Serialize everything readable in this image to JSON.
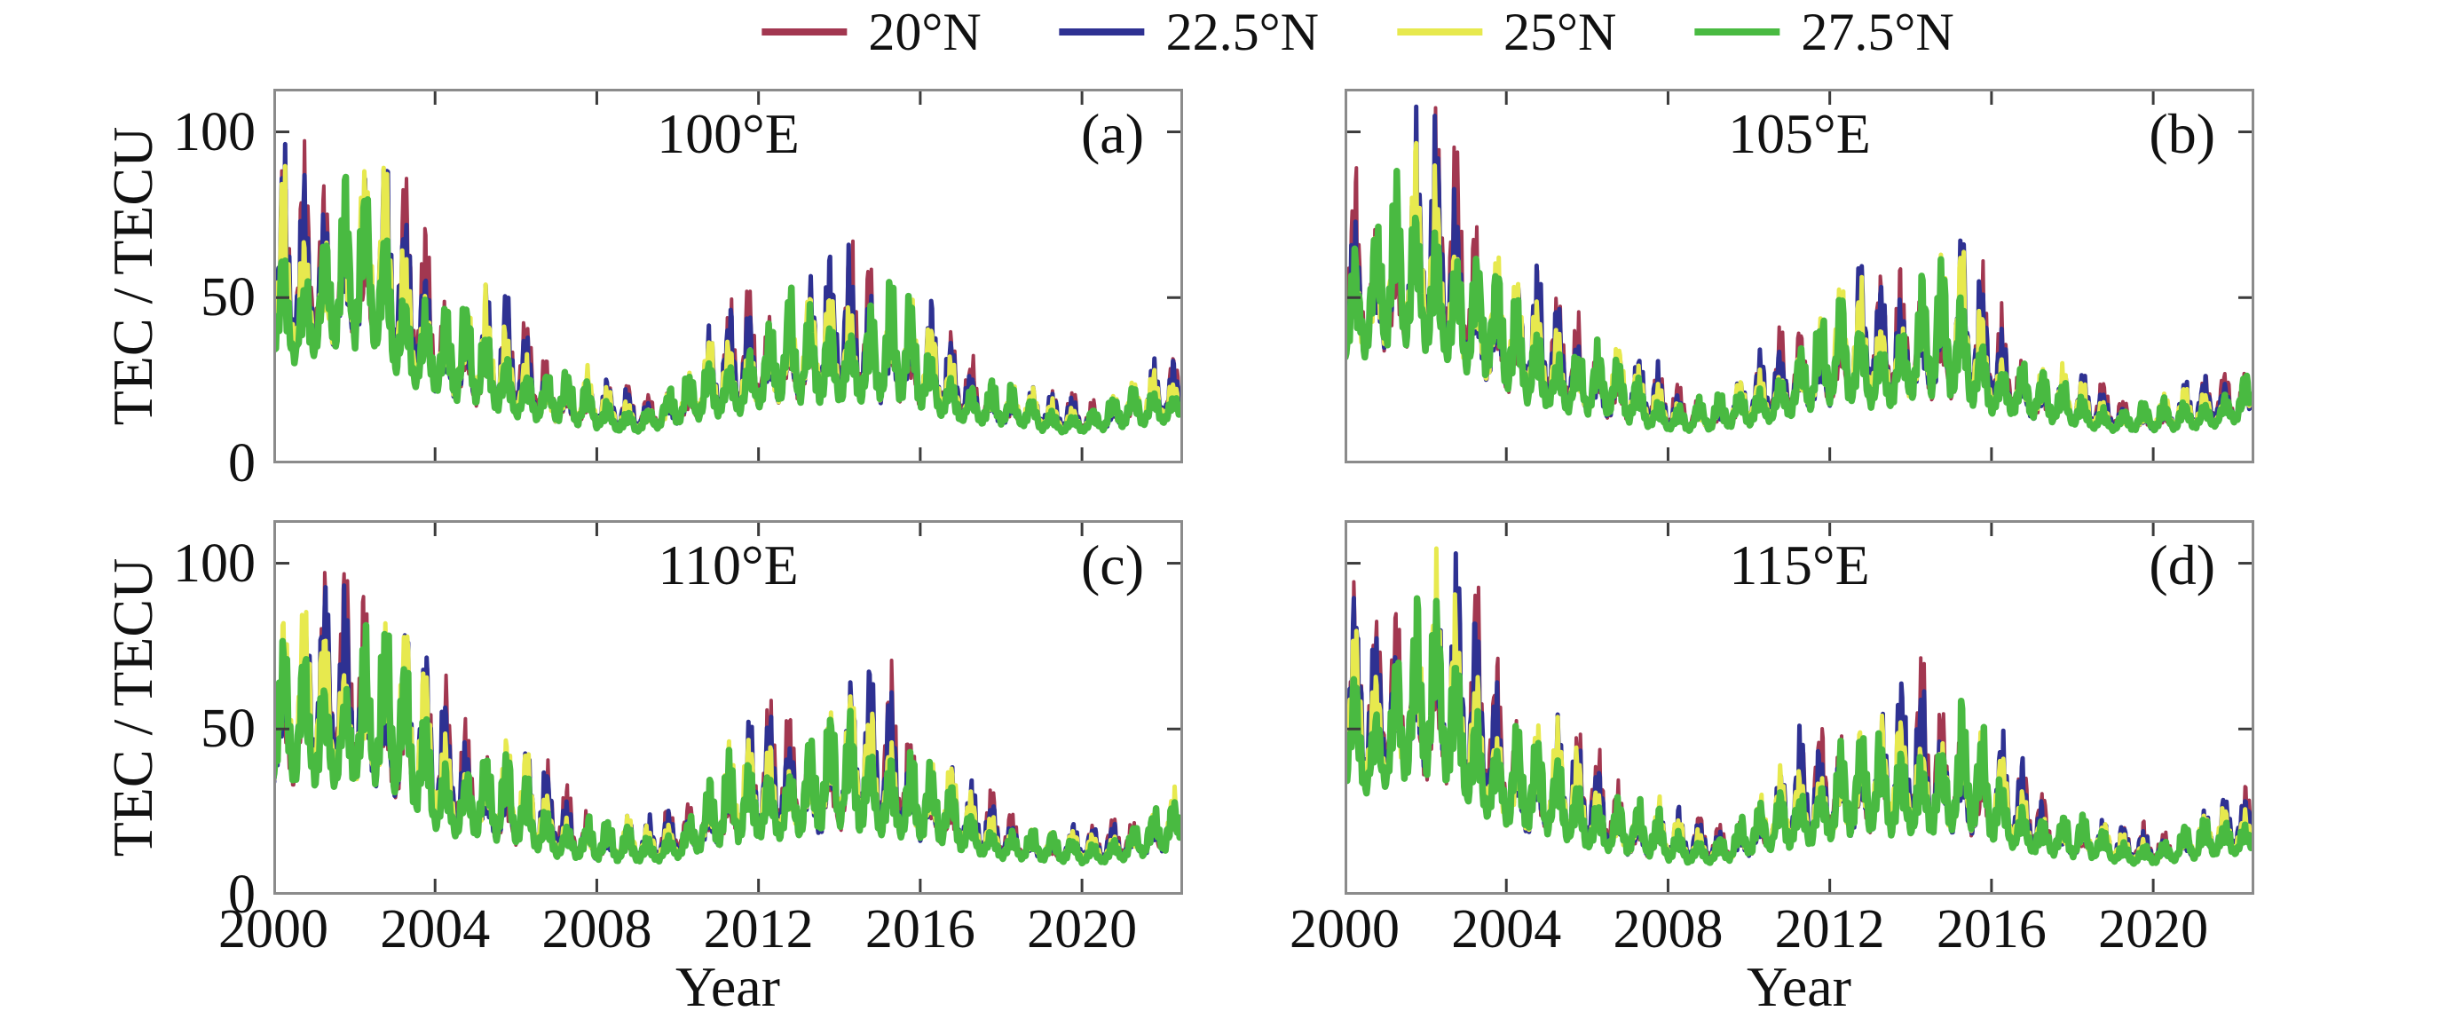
{
  "figure": {
    "background": "#ffffff",
    "frame_color": "#8b8b8b",
    "tick_color": "#3c3c3c",
    "text_color": "#111111"
  },
  "chart_data": {
    "type": "line",
    "title": "",
    "xlabel": "Year",
    "ylabel": "TEC / TECU",
    "xlim": [
      2000,
      2022.5
    ],
    "ylim": [
      0,
      113
    ],
    "x_ticks": [
      2000,
      2004,
      2008,
      2012,
      2016,
      2020
    ],
    "y_ticks": [
      0,
      50,
      100
    ],
    "grid": false,
    "legend_position": "top-center",
    "series": [
      {
        "name": "20°N",
        "color": "#a23750",
        "amp": 1.0,
        "base": 1.0,
        "stroke_width": 4
      },
      {
        "name": "22.5°N",
        "color": "#2e3192",
        "amp": 0.98,
        "base": 1.0,
        "stroke_width": 5
      },
      {
        "name": "25°N",
        "color": "#e7e94e",
        "amp": 0.905,
        "base": 1.0,
        "stroke_width": 5
      },
      {
        "name": "27.5°N",
        "color": "#49ba41",
        "amp": 0.815,
        "base": 0.97,
        "stroke_width": 7.5
      }
    ],
    "years": [
      2000,
      2001,
      2002,
      2003,
      2004,
      2005,
      2006,
      2007,
      2008,
      2009,
      2010,
      2011,
      2012,
      2013,
      2014,
      2015,
      2016,
      2017,
      2018,
      2019,
      2020,
      2021,
      2022
    ],
    "base_envelope": [
      28,
      30,
      30,
      22,
      16,
      14,
      12,
      10,
      9,
      9,
      11,
      13,
      15,
      15,
      16,
      15,
      13,
      11,
      10,
      9,
      9,
      10,
      12
    ],
    "panels": [
      {
        "id": "(a)",
        "title": "100°E",
        "peak_envelope": [
          86,
          100,
          107,
          88,
          63,
          55,
          46,
          34,
          26,
          24,
          33,
          50,
          60,
          60,
          72,
          70,
          48,
          34,
          27,
          22,
          22,
          28,
          33
        ]
      },
      {
        "id": "(b)",
        "title": "105°E",
        "peak_envelope": [
          88,
          101,
          108,
          90,
          64,
          56,
          46,
          34,
          26,
          24,
          33,
          51,
          62,
          61,
          73,
          71,
          48,
          34,
          27,
          22,
          22,
          28,
          34
        ]
      },
      {
        "id": "(c)",
        "title": "110°E",
        "peak_envelope": [
          88,
          102,
          109,
          91,
          65,
          56,
          46,
          34,
          26,
          24,
          33,
          51,
          61,
          62,
          74,
          72,
          49,
          35,
          27,
          22,
          22,
          28,
          34
        ]
      },
      {
        "id": "(d)",
        "title": "115°E",
        "peak_envelope": [
          87,
          101,
          108,
          90,
          64,
          56,
          46,
          34,
          26,
          24,
          33,
          51,
          61,
          61,
          73,
          71,
          48,
          34,
          27,
          22,
          22,
          28,
          33
        ]
      }
    ],
    "modulation": {
      "samples_per_year": 48,
      "seasonal": "semiannual (equinox maxima, solstice minima)",
      "fast_cycles_per_year": 10.7
    }
  }
}
